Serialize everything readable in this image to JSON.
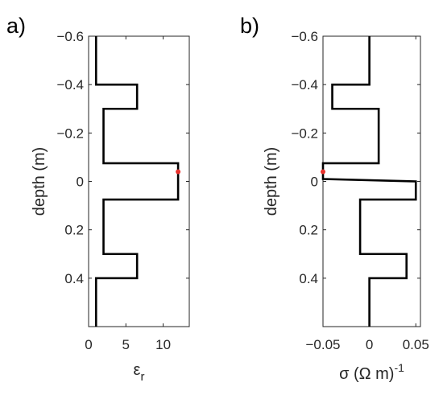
{
  "chart_data": [
    {
      "panel_label": "a)",
      "type": "line",
      "ylabel": "depth (m)",
      "xlabel_main": "ε",
      "xlabel_sub": "r",
      "xlim": [
        0,
        13.5
      ],
      "ylim": [
        -0.6,
        0.6
      ],
      "y_reversed": true,
      "grid": false,
      "xticks": [
        0,
        5,
        10
      ],
      "xtick_labels": [
        "0",
        "5",
        "10"
      ],
      "yticks": [
        -0.6,
        -0.4,
        -0.2,
        0,
        0.2,
        0.4
      ],
      "ytick_labels": [
        "−0.6",
        "−0.4",
        "−0.2",
        "0",
        "0.2",
        "0.4"
      ],
      "series": [
        {
          "color": "#000000",
          "points": [
            [
              1,
              -0.6
            ],
            [
              1,
              -0.4
            ],
            [
              6.5,
              -0.4
            ],
            [
              6.5,
              -0.3
            ],
            [
              2,
              -0.3
            ],
            [
              2,
              -0.075
            ],
            [
              12,
              -0.075
            ],
            [
              12,
              0.075
            ],
            [
              2,
              0.075
            ],
            [
              2,
              0.3
            ],
            [
              6.5,
              0.3
            ],
            [
              6.5,
              0.4
            ],
            [
              1,
              0.4
            ],
            [
              1,
              0.6
            ]
          ]
        }
      ],
      "marker": {
        "x": 12,
        "y": -0.04,
        "color": "#e8322d"
      }
    },
    {
      "panel_label": "b)",
      "type": "line",
      "ylabel": "depth (m)",
      "xlabel_main": "σ (Ω m)",
      "xlabel_sup": "-1",
      "xlim": [
        -0.05,
        0.055
      ],
      "ylim": [
        -0.6,
        0.6
      ],
      "y_reversed": true,
      "grid": false,
      "xticks": [
        -0.05,
        0,
        0.05
      ],
      "xtick_labels": [
        "−0.05",
        "0",
        "0.05"
      ],
      "yticks": [
        -0.6,
        -0.4,
        -0.2,
        0,
        0.2,
        0.4
      ],
      "ytick_labels": [
        "−0.6",
        "−0.4",
        "−0.2",
        "0",
        "0.2",
        "0.4"
      ],
      "series": [
        {
          "color": "#000000",
          "points": [
            [
              0,
              -0.6
            ],
            [
              0,
              -0.4
            ],
            [
              -0.04,
              -0.4
            ],
            [
              -0.04,
              -0.3
            ],
            [
              0.01,
              -0.3
            ],
            [
              0.01,
              -0.075
            ],
            [
              -0.05,
              -0.075
            ],
            [
              -0.05,
              -0.01
            ],
            [
              0.05,
              0
            ],
            [
              0.05,
              0.075
            ],
            [
              -0.01,
              0.075
            ],
            [
              -0.01,
              0.3
            ],
            [
              0.04,
              0.3
            ],
            [
              0.04,
              0.4
            ],
            [
              0,
              0.4
            ],
            [
              0,
              0.6
            ]
          ]
        }
      ],
      "marker": {
        "x": -0.05,
        "y": -0.04,
        "color": "#e8322d"
      }
    }
  ]
}
